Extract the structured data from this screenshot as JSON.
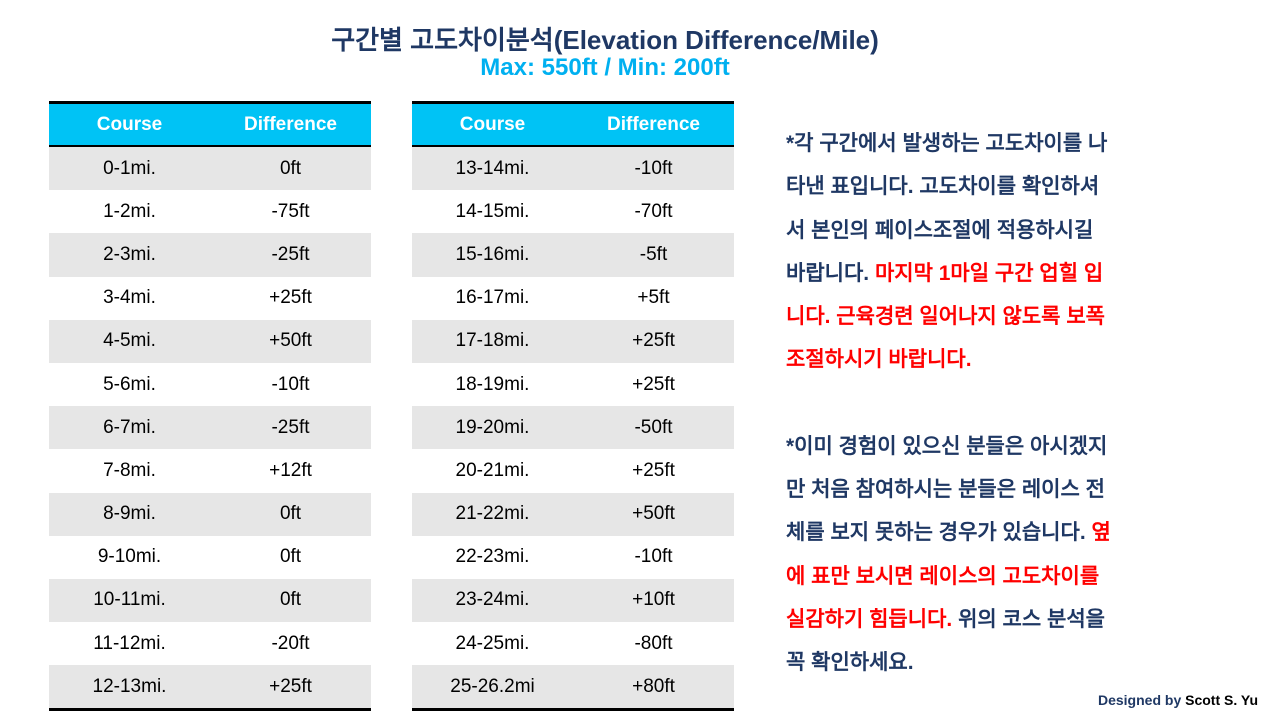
{
  "title": "구간별 고도차이분석(Elevation Difference/Mile)",
  "subtitle": "Max: 550ft / Min: 200ft",
  "headers": {
    "course": "Course",
    "difference": "Difference"
  },
  "left_table": [
    {
      "course": "0-1mi.",
      "diff": "0ft"
    },
    {
      "course": "1-2mi.",
      "diff": "-75ft"
    },
    {
      "course": "2-3mi.",
      "diff": "-25ft"
    },
    {
      "course": "3-4mi.",
      "diff": "+25ft"
    },
    {
      "course": "4-5mi.",
      "diff": "+50ft"
    },
    {
      "course": "5-6mi.",
      "diff": "-10ft"
    },
    {
      "course": "6-7mi.",
      "diff": "-25ft"
    },
    {
      "course": "7-8mi.",
      "diff": "+12ft"
    },
    {
      "course": "8-9mi.",
      "diff": "0ft"
    },
    {
      "course": "9-10mi.",
      "diff": "0ft"
    },
    {
      "course": "10-11mi.",
      "diff": "0ft"
    },
    {
      "course": "11-12mi.",
      "diff": "-20ft"
    },
    {
      "course": "12-13mi.",
      "diff": "+25ft"
    }
  ],
  "right_table": [
    {
      "course": "13-14mi.",
      "diff": "-10ft"
    },
    {
      "course": "14-15mi.",
      "diff": "-70ft"
    },
    {
      "course": "15-16mi.",
      "diff": "-5ft"
    },
    {
      "course": "16-17mi.",
      "diff": "+5ft"
    },
    {
      "course": "17-18mi.",
      "diff": "+25ft"
    },
    {
      "course": "18-19mi.",
      "diff": "+25ft"
    },
    {
      "course": "19-20mi.",
      "diff": "-50ft"
    },
    {
      "course": "20-21mi.",
      "diff": "+25ft"
    },
    {
      "course": "21-22mi.",
      "diff": "+50ft"
    },
    {
      "course": "22-23mi.",
      "diff": "-10ft"
    },
    {
      "course": "23-24mi.",
      "diff": "+10ft"
    },
    {
      "course": "24-25mi.",
      "diff": "-80ft"
    },
    {
      "course": "25-26.2mi",
      "diff": "+80ft"
    }
  ],
  "notes": {
    "p1_lines": [
      [
        {
          "text": "*각 구간에서 발생하는 고도차이를 나",
          "red": false
        }
      ],
      [
        {
          "text": "타낸 표입니다. 고도차이를 확인하셔",
          "red": false
        }
      ],
      [
        {
          "text": "서 본인의 페이스조절에 적용하시길",
          "red": false
        }
      ],
      [
        {
          "text": "바랍니다. ",
          "red": false
        },
        {
          "text": "마지막 1마일 구간 업힐 입",
          "red": true
        }
      ],
      [
        {
          "text": "니다. 근육경련 일어나지 않도록 보폭",
          "red": true
        }
      ],
      [
        {
          "text": "조절하시기 바랍니다.",
          "red": true
        }
      ]
    ],
    "p2_lines": [
      [
        {
          "text": "*이미 경험이 있으신 분들은 아시겠지",
          "red": false
        }
      ],
      [
        {
          "text": "만 처음 참여하시는 분들은 레이스 전",
          "red": false
        }
      ],
      [
        {
          "text": "체를 보지 못하는 경우가 있습니다. ",
          "red": false
        },
        {
          "text": "옆",
          "red": true
        }
      ],
      [
        {
          "text": "에 표만 보시면 레이스의 고도차이를",
          "red": true
        }
      ],
      [
        {
          "text": "실감하기 힘듭니다.",
          "red": true
        },
        {
          "text": " 위의 코스 분석을",
          "red": false
        }
      ],
      [
        {
          "text": "꼭 확인하세요.",
          "red": false
        }
      ]
    ]
  },
  "credit": {
    "prefix": "Designed by",
    "name": "Scott S. Yu"
  }
}
